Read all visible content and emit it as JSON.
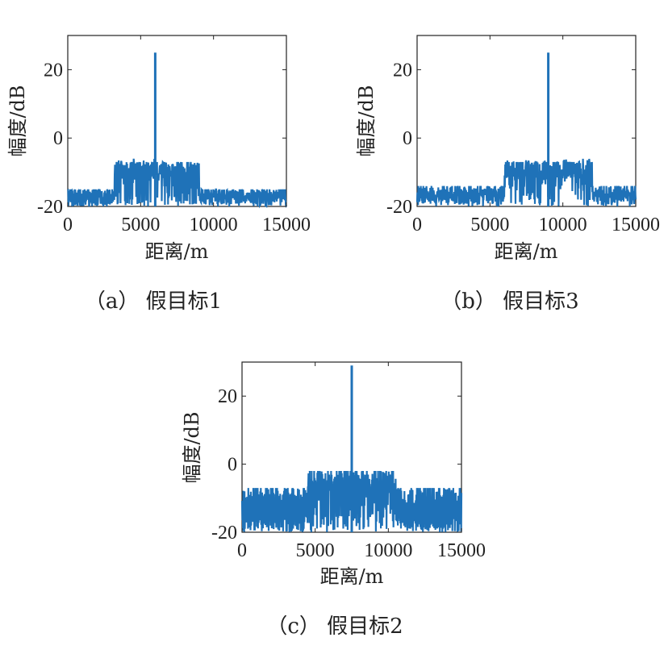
{
  "chart_data": [
    {
      "type": "line",
      "caption": "（a） 假目标1",
      "xlabel": "距离/m",
      "ylabel": "幅度/dB",
      "xlim": [
        0,
        15000
      ],
      "ylim": [
        -20,
        30
      ],
      "xticks": [
        "0",
        "5000",
        "10000",
        "15000"
      ],
      "yticks": [
        "-20",
        "0",
        "20"
      ],
      "color": "#1f72b8",
      "noise": {
        "base_top": -16,
        "raised_range": [
          3200,
          9000
        ],
        "raised_top": -8
      },
      "peak": {
        "x": 6000,
        "y": 25
      }
    },
    {
      "type": "line",
      "caption": "（b） 假目标3",
      "xlabel": "距离/m",
      "ylabel": "幅度/dB",
      "xlim": [
        0,
        15000
      ],
      "ylim": [
        -20,
        30
      ],
      "xticks": [
        "0",
        "5000",
        "10000",
        "15000"
      ],
      "yticks": [
        "-20",
        "0",
        "20"
      ],
      "color": "#1f72b8",
      "noise": {
        "base_top": -15,
        "raised_range": [
          6000,
          12000
        ],
        "raised_top": -8
      },
      "peak": {
        "x": 9000,
        "y": 25
      }
    },
    {
      "type": "line",
      "caption": "（c） 假目标2",
      "xlabel": "距离/m",
      "ylabel": "幅度/dB",
      "xlim": [
        0,
        15000
      ],
      "ylim": [
        -20,
        30
      ],
      "xticks": [
        "0",
        "5000",
        "10000",
        "15000"
      ],
      "yticks": [
        "-20",
        "0",
        "20"
      ],
      "color": "#1f72b8",
      "noise": {
        "base_top": -8,
        "raised_range": [
          4500,
          10500
        ],
        "raised_top": -3
      },
      "peak": {
        "x": 7500,
        "y": 29
      }
    }
  ]
}
